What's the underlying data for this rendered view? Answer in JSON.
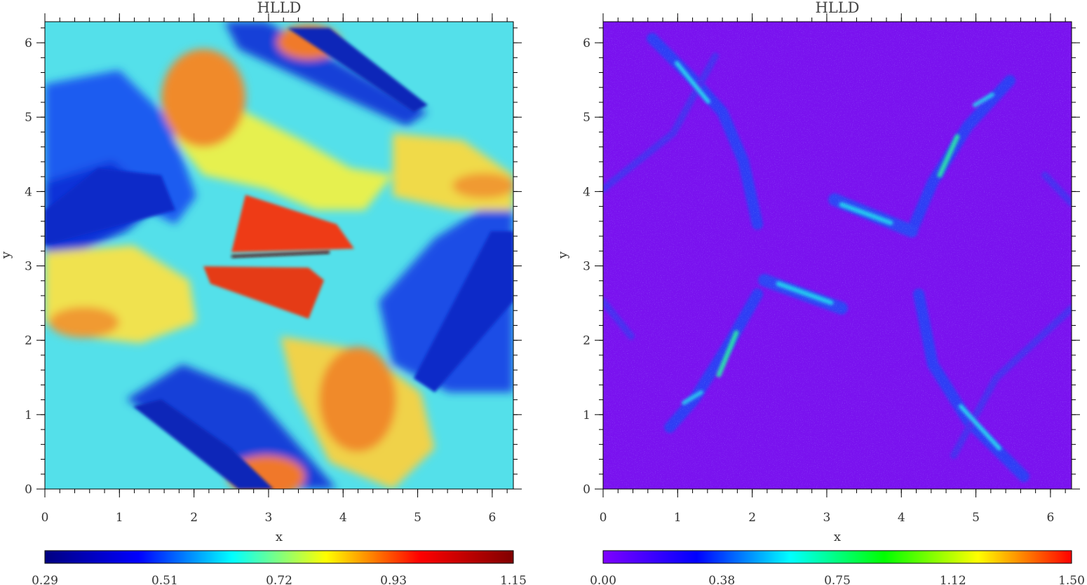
{
  "chart_data": [
    {
      "type": "heatmap",
      "title": "HLLD",
      "xlabel": "x",
      "ylabel": "y",
      "xlim": [
        0,
        6.2832
      ],
      "ylim": [
        0,
        6.2832
      ],
      "x_ticks": [
        "0",
        "1",
        "2",
        "3",
        "4",
        "5",
        "6"
      ],
      "y_ticks": [
        "0",
        "1",
        "2",
        "3",
        "4",
        "5",
        "6"
      ],
      "colorbar": {
        "colormap": "jet",
        "min": 0.29,
        "max": 1.15,
        "tick_labels": [
          "0.29",
          "0.51",
          "0.72",
          "0.93",
          "1.15"
        ],
        "stops": [
          "#000080",
          "#0000ff",
          "#00ffff",
          "#ffff00",
          "#ff0000",
          "#800000"
        ]
      },
      "pattern": "orszag-tang-density"
    },
    {
      "type": "heatmap",
      "title": "HLLD",
      "xlabel": "x",
      "ylabel": "y",
      "xlim": [
        0,
        6.2832
      ],
      "ylim": [
        0,
        6.2832
      ],
      "x_ticks": [
        "0",
        "1",
        "2",
        "3",
        "4",
        "5",
        "6"
      ],
      "y_ticks": [
        "0",
        "1",
        "2",
        "3",
        "4",
        "5",
        "6"
      ],
      "colorbar": {
        "colormap": "rainbow",
        "min": 0.0,
        "max": 1.5,
        "tick_labels": [
          "0.00",
          "0.38",
          "0.75",
          "1.12",
          "1.50"
        ],
        "stops": [
          "#7f00ff",
          "#0000ff",
          "#00ffff",
          "#00ff00",
          "#ffff00",
          "#ff0000"
        ]
      },
      "pattern": "current-sheets"
    }
  ]
}
